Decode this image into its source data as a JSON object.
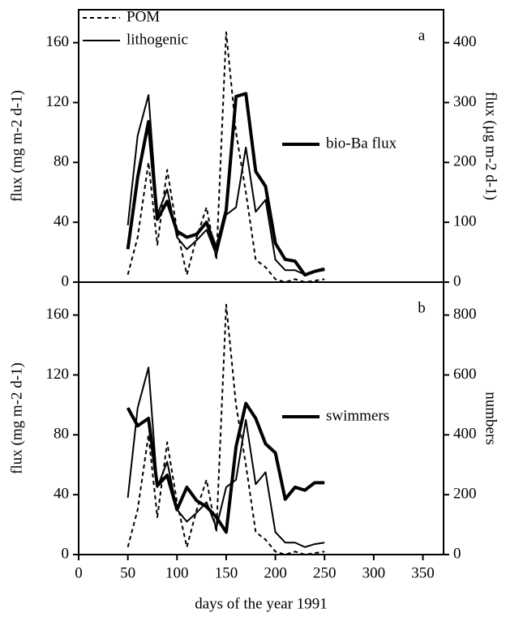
{
  "chart_data": [
    {
      "type": "line",
      "label": "a",
      "y_label": "flux (mg m-2 d-1)",
      "y2_label": "flux (µg m-2 d-1)",
      "x": [
        50,
        60,
        71,
        80,
        90,
        100,
        110,
        120,
        130,
        140,
        150,
        160,
        170,
        180,
        190,
        200,
        210,
        220,
        230,
        240,
        250
      ],
      "xlim": [
        0,
        371
      ],
      "ylim": [
        0,
        182
      ],
      "yticks": [
        0,
        40,
        80,
        120,
        160
      ],
      "y2lim": [
        0,
        455
      ],
      "y2ticks": [
        0,
        100,
        200,
        300,
        400
      ],
      "series": [
        {
          "name": "POM",
          "color": "#000",
          "dashed": true,
          "line_width": 2,
          "values": [
            5,
            30,
            80,
            25,
            75,
            35,
            5,
            30,
            50,
            15,
            167,
            100,
            60,
            15,
            10,
            2,
            0,
            2,
            0,
            1,
            2
          ]
        },
        {
          "name": "lithogenic",
          "color": "#000",
          "dashed": false,
          "line_width": 2,
          "values": [
            38,
            98,
            125,
            45,
            62,
            30,
            22,
            28,
            35,
            18,
            45,
            50,
            90,
            47,
            55,
            15,
            8,
            8,
            5,
            7,
            8
          ]
        },
        {
          "name": "bio-Ba flux",
          "color": "#000",
          "dashed": false,
          "line_width": 4,
          "axis": "y2",
          "values": [
            55,
            175,
            268,
            105,
            135,
            85,
            75,
            80,
            100,
            55,
            120,
            310,
            315,
            185,
            160,
            65,
            38,
            35,
            12,
            18,
            22
          ]
        }
      ]
    },
    {
      "type": "line",
      "label": "b",
      "y_label": "flux (mg m-2 d-1)",
      "y2_label": "numbers",
      "x_label": "days of the year 1991",
      "x": [
        50,
        60,
        71,
        80,
        90,
        100,
        110,
        120,
        130,
        140,
        150,
        160,
        170,
        180,
        190,
        200,
        210,
        220,
        230,
        240,
        250
      ],
      "xlim": [
        0,
        371
      ],
      "xticks": [
        0,
        50,
        100,
        150,
        200,
        250,
        300,
        350
      ],
      "ylim": [
        0,
        182
      ],
      "yticks": [
        0,
        40,
        80,
        120,
        160
      ],
      "y2lim": [
        0,
        910
      ],
      "y2ticks": [
        0,
        200,
        400,
        600,
        800
      ],
      "series": [
        {
          "color": "#000",
          "dashed": true,
          "line_width": 2,
          "values": [
            5,
            30,
            80,
            25,
            75,
            35,
            5,
            30,
            50,
            15,
            167,
            100,
            60,
            15,
            10,
            2,
            0,
            2,
            0,
            1,
            2
          ]
        },
        {
          "color": "#000",
          "dashed": false,
          "line_width": 2,
          "values": [
            38,
            98,
            125,
            45,
            62,
            30,
            22,
            28,
            35,
            18,
            45,
            50,
            90,
            47,
            55,
            15,
            8,
            8,
            5,
            7,
            8
          ]
        },
        {
          "name": "swimmers",
          "color": "#000",
          "dashed": false,
          "line_width": 4,
          "axis": "y2",
          "values": [
            490,
            430,
            455,
            230,
            265,
            150,
            225,
            180,
            160,
            125,
            75,
            360,
            505,
            455,
            370,
            340,
            185,
            225,
            215,
            240,
            240
          ]
        }
      ]
    }
  ]
}
